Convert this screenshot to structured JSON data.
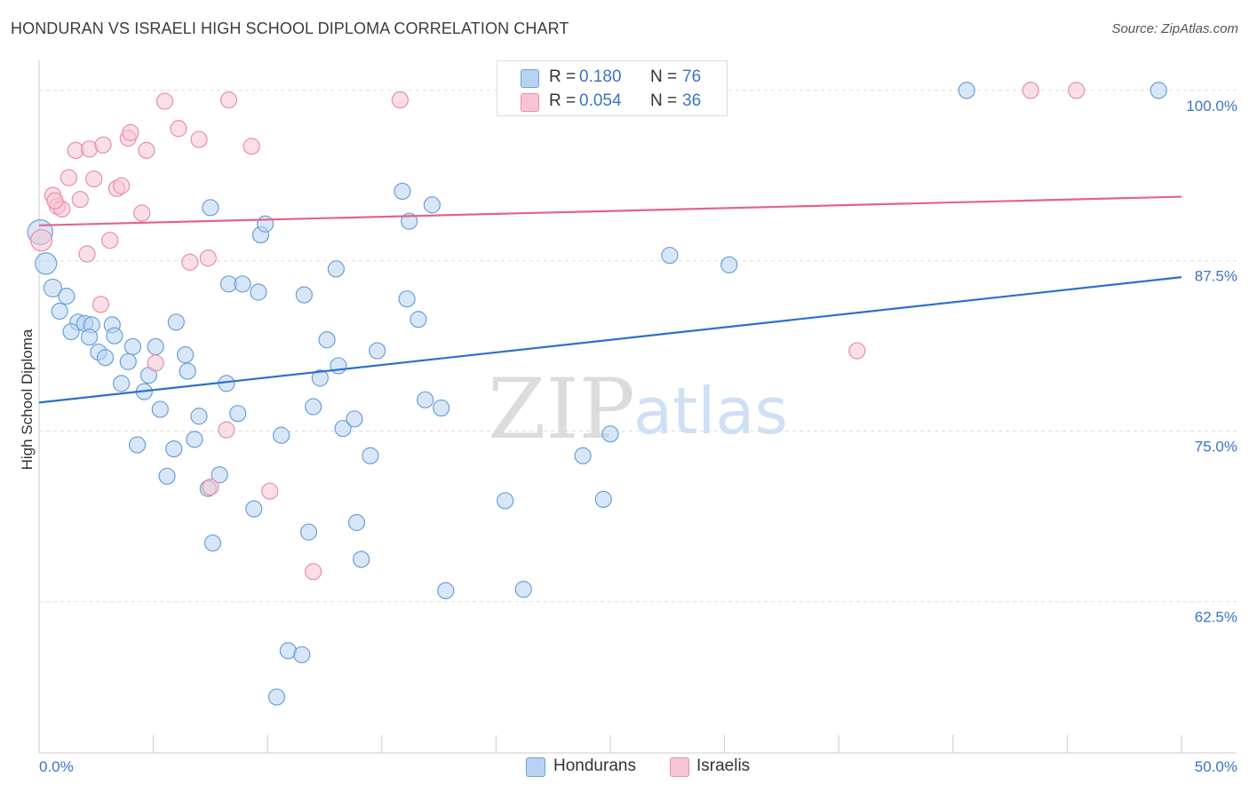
{
  "header": {
    "title": "HONDURAN VS ISRAELI HIGH SCHOOL DIPLOMA CORRELATION CHART",
    "source": "Source: ZipAtlas.com"
  },
  "watermark": {
    "zip": "ZIP",
    "atlas": "atlas"
  },
  "legend": {
    "hondurans": {
      "r_label": "R =",
      "r_value": "0.180",
      "n_label": "N =",
      "n_value": "76"
    },
    "israelis": {
      "r_label": "R =",
      "r_value": "0.054",
      "n_label": "N =",
      "n_value": "36"
    }
  },
  "colors": {
    "hondurans_fill": "#b8d3f2",
    "hondurans_stroke": "#6b9fd8",
    "hondurans_line": "#2e6fcc",
    "israelis_fill": "#f8c4d4",
    "israelis_stroke": "#e88eaa",
    "israelis_line": "#e0648e",
    "axis_text": "#3a73c8",
    "grid": "#dddddd"
  },
  "chart_data": {
    "type": "scatter",
    "title": "HONDURAN VS ISRAELI HIGH SCHOOL DIPLOMA CORRELATION CHART",
    "xlabel": "",
    "ylabel": "High School Diploma",
    "xlim": [
      0,
      50
    ],
    "ylim": [
      51.4,
      102.2
    ],
    "x_tick_labels": [
      "0.0%",
      "50.0%"
    ],
    "y_ticks": [
      62.5,
      75.0,
      87.5,
      100.0
    ],
    "y_tick_labels": [
      "62.5%",
      "75.0%",
      "87.5%",
      "100.0%"
    ],
    "grid": true,
    "legend_position": "top-center",
    "bottom_legend": [
      "Hondurans",
      "Israelis"
    ],
    "series": [
      {
        "name": "Hondurans",
        "r": 0.18,
        "n": 76,
        "trend": {
          "x": [
            0,
            50
          ],
          "y": [
            77.1,
            86.3
          ]
        },
        "points": [
          [
            0.05,
            89.6,
            14
          ],
          [
            0.3,
            87.3,
            12
          ],
          [
            0.6,
            85.5,
            10
          ],
          [
            1.2,
            84.9,
            9
          ],
          [
            0.9,
            83.8,
            9
          ],
          [
            1.7,
            83.0,
            9
          ],
          [
            2.0,
            82.9,
            9
          ],
          [
            2.3,
            82.8,
            9
          ],
          [
            1.4,
            82.3,
            9
          ],
          [
            3.2,
            82.8,
            9
          ],
          [
            2.2,
            81.9,
            9
          ],
          [
            3.3,
            82.0,
            9
          ],
          [
            4.1,
            81.2,
            9
          ],
          [
            5.1,
            81.2,
            9
          ],
          [
            6.0,
            83.0,
            9
          ],
          [
            2.6,
            80.8,
            9
          ],
          [
            2.9,
            80.4,
            9
          ],
          [
            3.9,
            80.1,
            9
          ],
          [
            6.4,
            80.6,
            9
          ],
          [
            6.5,
            79.4,
            9
          ],
          [
            4.8,
            79.1,
            9
          ],
          [
            3.6,
            78.5,
            9
          ],
          [
            4.6,
            77.9,
            9
          ],
          [
            8.2,
            78.5,
            9
          ],
          [
            5.3,
            76.6,
            9
          ],
          [
            7.0,
            76.1,
            9
          ],
          [
            8.7,
            76.3,
            9
          ],
          [
            4.3,
            74.0,
            9
          ],
          [
            5.9,
            73.7,
            9
          ],
          [
            6.8,
            74.4,
            9
          ],
          [
            10.6,
            74.7,
            9
          ],
          [
            5.6,
            71.7,
            9
          ],
          [
            7.4,
            70.8,
            9
          ],
          [
            7.9,
            71.8,
            9
          ],
          [
            9.4,
            69.3,
            9
          ],
          [
            7.6,
            66.8,
            9
          ],
          [
            7.5,
            91.4,
            9
          ],
          [
            9.7,
            89.4,
            9
          ],
          [
            9.9,
            90.2,
            9
          ],
          [
            8.3,
            85.8,
            9
          ],
          [
            8.9,
            85.8,
            9
          ],
          [
            9.6,
            85.2,
            9
          ],
          [
            11.6,
            85.0,
            9
          ],
          [
            13.0,
            86.9,
            9
          ],
          [
            12.6,
            81.7,
            9
          ],
          [
            13.1,
            79.8,
            9
          ],
          [
            12.3,
            78.9,
            9
          ],
          [
            12.0,
            76.8,
            9
          ],
          [
            13.3,
            75.2,
            9
          ],
          [
            13.8,
            75.9,
            9
          ],
          [
            14.8,
            80.9,
            9
          ],
          [
            15.9,
            92.6,
            9
          ],
          [
            16.2,
            90.4,
            9
          ],
          [
            17.2,
            91.6,
            9
          ],
          [
            16.1,
            84.7,
            9
          ],
          [
            16.6,
            83.2,
            9
          ],
          [
            16.9,
            77.3,
            9
          ],
          [
            17.6,
            76.7,
            9
          ],
          [
            14.5,
            73.2,
            9
          ],
          [
            11.8,
            67.6,
            9
          ],
          [
            13.9,
            68.3,
            9
          ],
          [
            14.1,
            65.6,
            9
          ],
          [
            17.8,
            63.3,
            9
          ],
          [
            20.4,
            69.9,
            9
          ],
          [
            21.2,
            63.4,
            9
          ],
          [
            10.9,
            58.9,
            9
          ],
          [
            11.5,
            58.6,
            9
          ],
          [
            10.4,
            55.5,
            9
          ],
          [
            23.8,
            73.2,
            9
          ],
          [
            24.7,
            70.0,
            9
          ],
          [
            25.0,
            74.8,
            9
          ],
          [
            27.6,
            87.9,
            9
          ],
          [
            30.2,
            87.2,
            9
          ],
          [
            28.2,
            100.0,
            9
          ],
          [
            40.6,
            100.0,
            9
          ],
          [
            49.0,
            100.0,
            9
          ]
        ]
      },
      {
        "name": "Israelis",
        "r": 0.054,
        "n": 36,
        "trend": {
          "x": [
            0,
            50
          ],
          "y": [
            90.1,
            92.2
          ]
        },
        "points": [
          [
            0.1,
            89.0,
            12
          ],
          [
            0.6,
            92.3,
            9
          ],
          [
            0.8,
            91.5,
            9
          ],
          [
            1.0,
            91.3,
            9
          ],
          [
            0.7,
            91.9,
            9
          ],
          [
            1.3,
            93.6,
            9
          ],
          [
            1.6,
            95.6,
            9
          ],
          [
            1.8,
            92.0,
            9
          ],
          [
            2.2,
            95.7,
            9
          ],
          [
            2.4,
            93.5,
            9
          ],
          [
            2.8,
            96.0,
            9
          ],
          [
            3.1,
            89.0,
            9
          ],
          [
            2.1,
            88.0,
            9
          ],
          [
            3.4,
            92.8,
            9
          ],
          [
            3.6,
            93.0,
            9
          ],
          [
            3.9,
            96.5,
            9
          ],
          [
            4.0,
            96.9,
            9
          ],
          [
            4.5,
            91.0,
            9
          ],
          [
            4.7,
            95.6,
            9
          ],
          [
            5.1,
            80.0,
            9
          ],
          [
            5.5,
            99.2,
            9
          ],
          [
            6.1,
            97.2,
            9
          ],
          [
            6.6,
            87.4,
            9
          ],
          [
            7.0,
            96.4,
            9
          ],
          [
            7.4,
            87.7,
            9
          ],
          [
            8.3,
            99.3,
            9
          ],
          [
            9.3,
            95.9,
            9
          ],
          [
            2.7,
            84.3,
            9
          ],
          [
            7.5,
            70.9,
            9
          ],
          [
            8.2,
            75.1,
            9
          ],
          [
            10.1,
            70.6,
            9
          ],
          [
            12.0,
            64.7,
            9
          ],
          [
            15.8,
            99.3,
            9
          ],
          [
            35.8,
            80.9,
            9
          ],
          [
            43.4,
            100.0,
            9
          ],
          [
            45.4,
            100.0,
            9
          ]
        ]
      }
    ]
  }
}
